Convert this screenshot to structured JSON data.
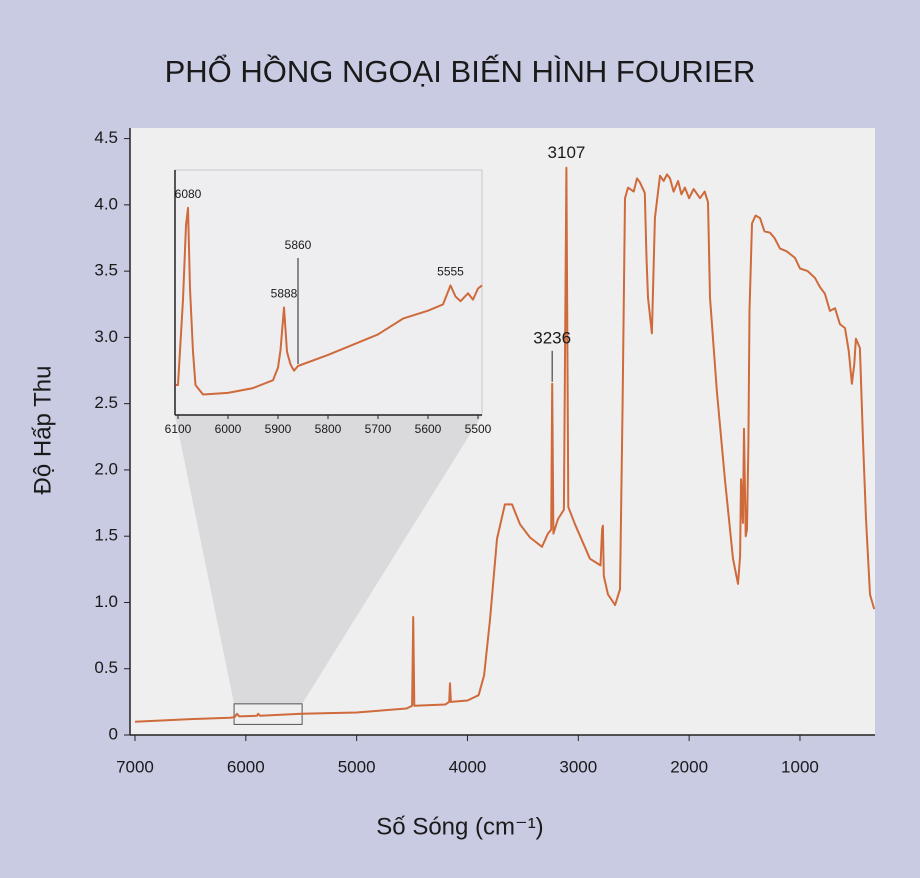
{
  "title": "PHỔ HỒNG NGOẠI BIẾN HÌNH FOURIER",
  "chart_data": [
    {
      "type": "line",
      "xlabel": "Số Sóng (cm⁻¹)",
      "ylabel": "Độ Hấp Thu",
      "color": "#cf6a3b",
      "xlim": [
        7045,
        323
      ],
      "ylim": [
        0,
        4.58
      ],
      "xticks": [
        7000,
        6000,
        5000,
        4000,
        3000,
        2000,
        1000
      ],
      "yticks": [
        0,
        0.5,
        {
          "value": 1.0,
          "label": "1.0"
        },
        1.5,
        {
          "value": 2.0,
          "label": "2.0"
        },
        2.5,
        {
          "value": 3.0,
          "label": "3.0"
        },
        3.5,
        {
          "value": 4.0,
          "label": "4.0"
        },
        4.5
      ],
      "x": [
        7000,
        6500,
        6143,
        6100,
        6080,
        6060,
        5900,
        5888,
        5870,
        5500,
        5000,
        4550,
        4500,
        4490,
        4480,
        4200,
        4165,
        4158,
        4150,
        4000,
        3900,
        3850,
        3797,
        3734,
        3662,
        3598,
        3526,
        3436,
        3328,
        3274,
        3245,
        3236,
        3225,
        3183,
        3130,
        3107,
        3090,
        3030,
        2895,
        2800,
        2785,
        2778,
        2770,
        2732,
        2668,
        2624,
        2600,
        2579,
        2552,
        2500,
        2470,
        2444,
        2400,
        2385,
        2371,
        2336,
        2309,
        2263,
        2230,
        2200,
        2173,
        2140,
        2100,
        2070,
        2038,
        2000,
        1960,
        1902,
        1860,
        1830,
        1812,
        1750,
        1677,
        1604,
        1559,
        1540,
        1532,
        1515,
        1505,
        1490,
        1478,
        1465,
        1455,
        1433,
        1400,
        1361,
        1320,
        1270,
        1230,
        1180,
        1120,
        1045,
        1000,
        930,
        865,
        820,
        775,
        730,
        684,
        640,
        594,
        560,
        531,
        510,
        495,
        459,
        430,
        404,
        368,
        330
      ],
      "values": [
        0.1,
        0.12,
        0.13,
        0.135,
        0.16,
        0.14,
        0.145,
        0.16,
        0.145,
        0.16,
        0.17,
        0.2,
        0.22,
        0.89,
        0.22,
        0.23,
        0.25,
        0.39,
        0.25,
        0.26,
        0.3,
        0.45,
        0.87,
        1.48,
        1.74,
        1.74,
        1.59,
        1.49,
        1.42,
        1.52,
        1.55,
        2.65,
        1.52,
        1.63,
        1.7,
        4.28,
        1.72,
        1.59,
        1.33,
        1.28,
        1.55,
        1.58,
        1.2,
        1.06,
        0.98,
        1.1,
        2.5,
        4.05,
        4.13,
        4.1,
        4.2,
        4.17,
        4.09,
        3.6,
        3.3,
        3.03,
        3.9,
        4.22,
        4.18,
        4.23,
        4.2,
        4.1,
        4.18,
        4.08,
        4.13,
        4.05,
        4.12,
        4.05,
        4.1,
        4.02,
        3.3,
        2.6,
        1.93,
        1.33,
        1.14,
        1.35,
        1.93,
        1.6,
        2.31,
        1.5,
        1.55,
        2.2,
        3.2,
        3.86,
        3.92,
        3.9,
        3.8,
        3.79,
        3.75,
        3.67,
        3.65,
        3.6,
        3.52,
        3.5,
        3.45,
        3.38,
        3.33,
        3.2,
        3.22,
        3.1,
        3.07,
        2.9,
        2.65,
        2.8,
        2.99,
        2.92,
        2.2,
        1.63,
        1.06,
        0.95
      ],
      "annotations": [
        {
          "text": "3236",
          "x": 3236,
          "y": 2.65,
          "leader": true
        },
        {
          "text": "3107",
          "x": 3107,
          "y": 4.28,
          "leader": false
        }
      ]
    },
    {
      "type": "line",
      "color": "#cf6a3b",
      "xlim": [
        6106,
        5492
      ],
      "ylim": [
        0.08,
        0.235
      ],
      "xticks": [
        6100,
        6000,
        5900,
        5800,
        5700,
        5600,
        5500
      ],
      "x": [
        6105,
        6100,
        6090,
        6084,
        6080,
        6076,
        6070,
        6065,
        6050,
        6000,
        5950,
        5910,
        5900,
        5895,
        5888,
        5882,
        5875,
        5868,
        5860,
        5800,
        5700,
        5650,
        5600,
        5570,
        5560,
        5555,
        5545,
        5535,
        5520,
        5510,
        5500,
        5492
      ],
      "values": [
        0.099,
        0.099,
        0.153,
        0.2,
        0.211,
        0.16,
        0.12,
        0.099,
        0.093,
        0.094,
        0.097,
        0.102,
        0.11,
        0.121,
        0.148,
        0.12,
        0.112,
        0.108,
        0.111,
        0.118,
        0.131,
        0.141,
        0.146,
        0.15,
        0.158,
        0.162,
        0.155,
        0.152,
        0.157,
        0.153,
        0.16,
        0.162
      ],
      "annotations": [
        {
          "text": "6080",
          "x": 6080,
          "y": 0.211,
          "leader": false
        },
        {
          "text": "5888",
          "x": 5888,
          "y": 0.148,
          "leader": false
        },
        {
          "text": "5860",
          "x": 5860,
          "y": 0.111,
          "leader": true
        },
        {
          "text": "5555",
          "x": 5555,
          "y": 0.162,
          "leader": false
        }
      ]
    }
  ]
}
